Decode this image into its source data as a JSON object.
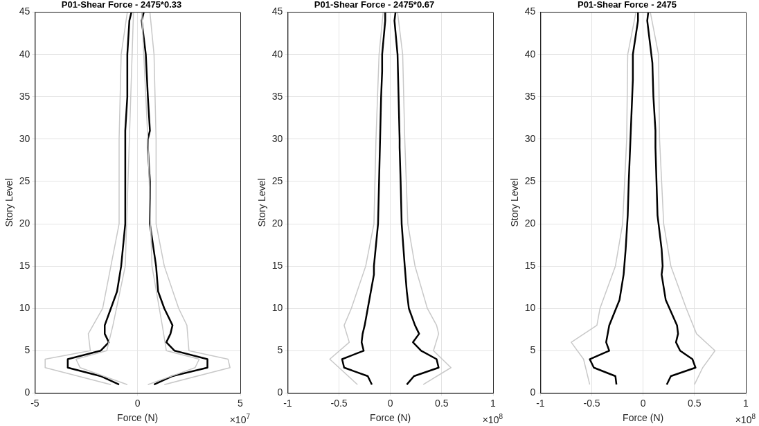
{
  "chart_data": [
    {
      "type": "line",
      "title": "P01-Shear Force - 2475*0.33",
      "xlabel": "Force (N)",
      "ylabel": "Story Level",
      "annotations": [
        "×10$^{7}$"
      ],
      "xlim": [
        -5,
        5
      ],
      "xticks": [
        -5,
        0,
        5
      ],
      "ylim": [
        0,
        45
      ],
      "yticks": [
        0,
        5,
        10,
        15,
        20,
        25,
        30,
        35,
        40,
        45
      ],
      "grid": true,
      "legend": false,
      "marker": "none",
      "line_style": "solid",
      "series": [
        {
          "color": "#c8c8c8",
          "x": [
            -1.3,
            -4.5,
            -4.5,
            -2.3,
            -2.4,
            -1.7,
            -1.3,
            -0.9,
            -0.9,
            -0.8,
            -0.5
          ],
          "values": [
            1,
            3,
            4,
            5,
            7,
            10,
            15,
            20,
            30,
            40,
            45
          ]
        },
        {
          "color": "#c8c8c8",
          "x": [
            1.3,
            4.5,
            4.4,
            2.5,
            2.4,
            2.0,
            1.3,
            0.9,
            0.9,
            0.8,
            0.6
          ],
          "values": [
            1,
            3,
            4,
            5,
            8,
            10,
            15,
            20,
            30,
            40,
            45
          ]
        },
        {
          "color": "#c8c8c8",
          "x": [
            -0.5,
            -2.8,
            -3.0,
            -1.5,
            -1.2,
            -0.6,
            -0.4,
            -0.2
          ],
          "values": [
            1,
            3,
            4,
            5,
            8,
            15,
            30,
            45
          ]
        },
        {
          "color": "#c8c8c8",
          "x": [
            0.5,
            2.8,
            3.0,
            1.4,
            1.2,
            0.7,
            0.5,
            0.2
          ],
          "values": [
            1,
            3,
            4,
            5,
            8,
            15,
            30,
            45
          ]
        },
        {
          "color": "#000000",
          "x": [
            -0.9,
            -1.8,
            -3.4,
            -3.4,
            -1.8,
            -1.4,
            -1.6,
            -1.6,
            -1.3,
            -1.0,
            -0.8,
            -0.6,
            -0.6,
            -0.5,
            -0.5,
            -0.4,
            -0.3
          ],
          "values": [
            1,
            2,
            3,
            4,
            5,
            6,
            7,
            8,
            10,
            12,
            15,
            20,
            31,
            35,
            40,
            44,
            45
          ]
        },
        {
          "color": "#000000",
          "x": [
            0.8,
            1.7,
            3.4,
            3.4,
            1.8,
            1.4,
            1.6,
            1.7,
            1.3,
            1.0,
            0.9,
            0.6,
            0.6,
            0.5,
            0.5,
            0.6,
            0.5,
            0.4,
            0.2,
            0.3
          ],
          "values": [
            1,
            2,
            3,
            4,
            5,
            6,
            7,
            8,
            10,
            12,
            15,
            20,
            25,
            29,
            30,
            31,
            35,
            40,
            44,
            45
          ]
        }
      ]
    },
    {
      "type": "line",
      "title": "P01-Shear Force - 2475*0.67",
      "xlabel": "Force (N)",
      "ylabel": "Story Level",
      "annotations": [
        "×10$^{8}$"
      ],
      "xlim": [
        -1,
        1
      ],
      "xticks": [
        -1,
        -0.5,
        0,
        0.5,
        1
      ],
      "ylim": [
        0,
        45
      ],
      "yticks": [
        0,
        5,
        10,
        15,
        20,
        25,
        30,
        35,
        40,
        45
      ],
      "grid": true,
      "legend": false,
      "marker": "none",
      "line_style": "solid",
      "series": [
        {
          "color": "#c8c8c8",
          "x": [
            -0.32,
            -0.59,
            -0.4,
            -0.45,
            -0.38,
            -0.24,
            -0.16,
            -0.14,
            -0.11,
            -0.07
          ],
          "values": [
            1,
            4,
            6,
            8,
            10,
            15,
            20,
            30,
            40,
            45
          ]
        },
        {
          "color": "#c8c8c8",
          "x": [
            0.32,
            0.59,
            0.42,
            0.47,
            0.45,
            0.36,
            0.24,
            0.17,
            0.14,
            0.12,
            0.07
          ],
          "values": [
            1,
            3,
            5,
            7,
            8,
            10,
            15,
            20,
            30,
            40,
            45
          ]
        },
        {
          "color": "#000000",
          "x": [
            -0.18,
            -0.22,
            -0.45,
            -0.47,
            -0.26,
            -0.28,
            -0.27,
            -0.25,
            -0.22,
            -0.19,
            -0.16,
            -0.16,
            -0.12,
            -0.11,
            -0.1,
            -0.09,
            -0.08,
            -0.08,
            -0.05,
            -0.05
          ],
          "values": [
            1,
            2,
            3,
            4,
            5,
            6,
            7,
            8,
            10,
            12,
            14,
            15,
            20,
            25,
            30,
            35,
            38,
            40,
            44,
            45
          ]
        },
        {
          "color": "#000000",
          "x": [
            0.16,
            0.23,
            0.47,
            0.45,
            0.3,
            0.22,
            0.28,
            0.24,
            0.18,
            0.16,
            0.14,
            0.11,
            0.1,
            0.09,
            0.09,
            0.08,
            0.07,
            0.04,
            0.05
          ],
          "values": [
            1,
            2,
            3,
            4,
            5,
            6,
            7,
            8,
            10,
            12,
            15,
            20,
            25,
            29,
            30,
            35,
            40,
            44,
            45
          ]
        }
      ]
    },
    {
      "type": "line",
      "title": "P01-Shear Force - 2475",
      "xlabel": "Force (N)",
      "ylabel": "Story Level",
      "annotations": [
        "×10$^{8}$"
      ],
      "xlim": [
        -1,
        1
      ],
      "xticks": [
        -1,
        -0.5,
        0,
        0.5,
        1
      ],
      "ylim": [
        0,
        45
      ],
      "yticks": [
        0,
        5,
        10,
        15,
        20,
        25,
        30,
        35,
        40,
        45
      ],
      "grid": true,
      "legend": false,
      "marker": "none",
      "line_style": "solid",
      "series": [
        {
          "color": "#c8c8c8",
          "x": [
            -0.52,
            -0.58,
            -0.7,
            -0.45,
            -0.42,
            -0.27,
            -0.2,
            -0.16,
            -0.15,
            -0.07
          ],
          "values": [
            1,
            4,
            6,
            8,
            10,
            15,
            20,
            30,
            40,
            45
          ]
        },
        {
          "color": "#c8c8c8",
          "x": [
            0.5,
            0.58,
            0.7,
            0.52,
            0.42,
            0.27,
            0.2,
            0.16,
            0.15,
            0.07
          ],
          "values": [
            1,
            3,
            5,
            7,
            10,
            15,
            20,
            30,
            40,
            45
          ]
        },
        {
          "color": "#000000",
          "x": [
            -0.26,
            -0.27,
            -0.48,
            -0.52,
            -0.33,
            -0.36,
            -0.33,
            -0.23,
            -0.19,
            -0.17,
            -0.15,
            -0.14,
            -0.12,
            -0.1,
            -0.1,
            -0.05,
            -0.05
          ],
          "values": [
            1,
            2,
            3,
            4,
            5,
            6,
            8,
            11,
            14,
            17,
            21,
            25,
            31,
            37,
            40,
            44,
            45
          ]
        },
        {
          "color": "#000000",
          "x": [
            0.23,
            0.27,
            0.51,
            0.48,
            0.36,
            0.32,
            0.34,
            0.33,
            0.22,
            0.18,
            0.19,
            0.18,
            0.14,
            0.13,
            0.12,
            0.12,
            0.1,
            0.09,
            0.04,
            0.05
          ],
          "values": [
            1,
            2,
            3,
            4,
            5,
            6,
            7,
            8,
            11,
            14,
            15,
            17,
            21,
            25,
            29,
            31,
            35,
            39,
            44,
            45
          ]
        }
      ]
    }
  ]
}
